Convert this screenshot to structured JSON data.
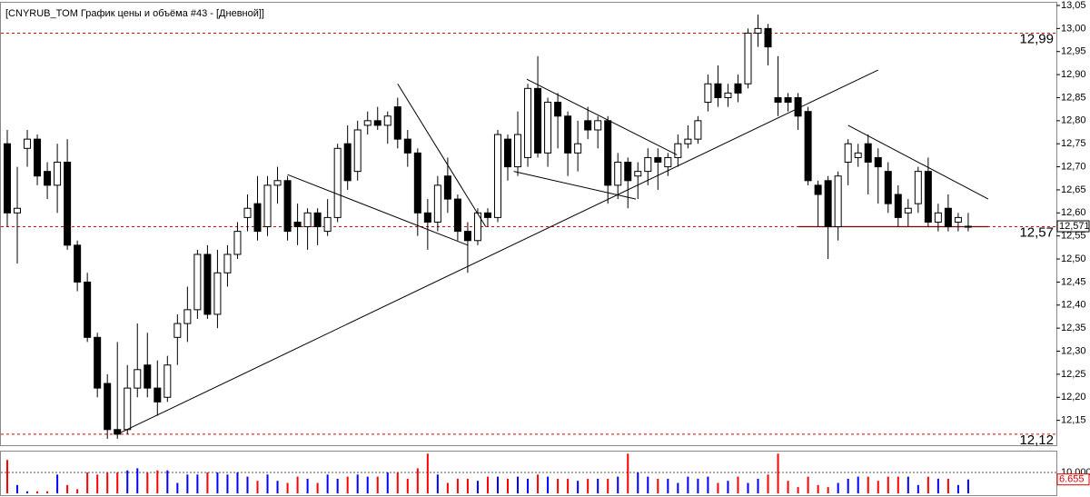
{
  "chart_data": {
    "type": "candlestick",
    "title": "[CNYRUB_TOM График цены и объёма #43 - [Дневной]]",
    "open": [
      12.75,
      12.6,
      12.74,
      12.76,
      12.69,
      12.66,
      12.71,
      12.53,
      12.45,
      12.33,
      12.23,
      12.13,
      12.13,
      12.22,
      12.27,
      12.22,
      12.2,
      12.33,
      12.36,
      12.39,
      12.51,
      12.38,
      12.47,
      12.51,
      12.59,
      12.62,
      12.57,
      12.66,
      12.67,
      12.58,
      12.57,
      12.6,
      12.56,
      12.59,
      12.75,
      12.69,
      12.79,
      12.8,
      12.79,
      12.83,
      12.76,
      12.73,
      12.6,
      12.58,
      12.68,
      12.63,
      12.56,
      12.54,
      12.6,
      12.59,
      12.76,
      12.7,
      12.72,
      12.87,
      12.73,
      12.84,
      12.81,
      12.73,
      12.8,
      12.78,
      12.8,
      12.66,
      12.71,
      12.68,
      12.69,
      12.72,
      12.7,
      12.72,
      12.75,
      12.76,
      12.84,
      12.88,
      12.85,
      12.88,
      12.88,
      12.99,
      13.0,
      12.85,
      12.85,
      12.85,
      12.82,
      12.66,
      12.67,
      12.57,
      12.71,
      12.72,
      12.75,
      12.72,
      12.69,
      12.64,
      12.6,
      12.62,
      12.69,
      12.58,
      12.61,
      12.58,
      12.57
    ],
    "high": [
      12.78,
      12.7,
      12.78,
      12.77,
      12.71,
      12.75,
      12.76,
      12.54,
      12.47,
      12.34,
      12.25,
      12.32,
      12.27,
      12.36,
      12.34,
      12.28,
      12.29,
      12.38,
      12.44,
      12.52,
      12.53,
      12.52,
      12.53,
      12.58,
      12.64,
      12.68,
      12.68,
      12.7,
      12.68,
      12.62,
      12.61,
      12.61,
      12.63,
      12.75,
      12.79,
      12.8,
      12.82,
      12.83,
      12.82,
      12.85,
      12.78,
      12.74,
      12.63,
      12.68,
      12.72,
      12.64,
      12.58,
      12.61,
      12.61,
      12.78,
      12.77,
      12.82,
      12.88,
      12.94,
      12.85,
      12.86,
      12.82,
      12.8,
      12.83,
      12.81,
      12.81,
      12.73,
      12.72,
      12.71,
      12.74,
      12.74,
      12.73,
      12.77,
      12.79,
      12.81,
      12.9,
      12.92,
      12.88,
      12.9,
      13.0,
      13.03,
      13.01,
      12.94,
      12.86,
      12.86,
      12.83,
      12.67,
      12.68,
      12.69,
      12.76,
      12.75,
      12.77,
      12.74,
      12.71,
      12.66,
      12.63,
      12.7,
      12.72,
      12.62,
      12.64,
      12.6,
      12.6
    ],
    "low": [
      12.57,
      12.49,
      12.7,
      12.66,
      12.63,
      12.6,
      12.52,
      12.43,
      12.32,
      12.2,
      12.11,
      12.11,
      12.12,
      12.2,
      12.2,
      12.16,
      12.19,
      12.27,
      12.32,
      12.37,
      12.37,
      12.35,
      12.44,
      12.5,
      12.56,
      12.54,
      12.55,
      12.62,
      12.54,
      12.53,
      12.52,
      12.53,
      12.55,
      12.58,
      12.65,
      12.67,
      12.77,
      12.78,
      12.75,
      12.74,
      12.7,
      12.55,
      12.52,
      12.56,
      12.6,
      12.54,
      12.47,
      12.53,
      12.57,
      12.58,
      12.67,
      12.68,
      12.7,
      12.72,
      12.7,
      12.74,
      12.68,
      12.69,
      12.76,
      12.74,
      12.62,
      12.63,
      12.61,
      12.63,
      12.66,
      12.65,
      12.68,
      12.7,
      12.74,
      12.75,
      12.82,
      12.83,
      12.83,
      12.84,
      12.87,
      12.96,
      12.92,
      12.81,
      12.82,
      12.78,
      12.66,
      12.57,
      12.5,
      12.54,
      12.66,
      12.7,
      12.64,
      12.62,
      12.6,
      12.57,
      12.57,
      12.6,
      12.57,
      12.56,
      12.56,
      12.56,
      12.56
    ],
    "close": [
      12.6,
      12.61,
      12.76,
      12.68,
      12.66,
      12.71,
      12.53,
      12.45,
      12.33,
      12.22,
      12.13,
      12.12,
      12.22,
      12.26,
      12.22,
      12.19,
      12.27,
      12.36,
      12.39,
      12.51,
      12.38,
      12.47,
      12.51,
      12.56,
      12.61,
      12.56,
      12.66,
      12.67,
      12.56,
      12.57,
      12.6,
      12.57,
      12.59,
      12.74,
      12.67,
      12.78,
      12.8,
      12.79,
      12.81,
      12.76,
      12.73,
      12.6,
      12.58,
      12.66,
      12.63,
      12.56,
      12.54,
      12.6,
      12.59,
      12.77,
      12.7,
      12.77,
      12.87,
      12.73,
      12.84,
      12.81,
      12.73,
      12.75,
      12.78,
      12.8,
      12.66,
      12.71,
      12.67,
      12.69,
      12.72,
      12.71,
      12.72,
      12.75,
      12.76,
      12.8,
      12.88,
      12.85,
      12.86,
      12.86,
      12.99,
      13.0,
      12.96,
      12.84,
      12.84,
      12.81,
      12.67,
      12.64,
      12.57,
      12.68,
      12.75,
      12.73,
      12.71,
      12.7,
      12.62,
      12.59,
      12.61,
      12.69,
      12.58,
      12.6,
      12.57,
      12.59,
      12.571
    ],
    "volume": [
      16000,
      4000,
      1000,
      1000,
      1000,
      9000,
      4000,
      2000,
      10000,
      9000,
      10000,
      10000,
      11000,
      12000,
      10000,
      11000,
      11000,
      5000,
      9000,
      9000,
      10000,
      10000,
      9000,
      10000,
      8000,
      6000,
      9000,
      6000,
      5000,
      8000,
      7000,
      5000,
      9000,
      7000,
      8000,
      9000,
      8000,
      8000,
      10000,
      10000,
      7000,
      12000,
      19000,
      9000,
      5000,
      7000,
      7000,
      6000,
      8000,
      8000,
      7000,
      8000,
      7000,
      9000,
      8000,
      7000,
      7000,
      6000,
      7000,
      7000,
      7000,
      8000,
      19000,
      10000,
      8000,
      7000,
      7000,
      5000,
      8000,
      7000,
      8000,
      5000,
      6000,
      8000,
      5000,
      7000,
      9000,
      19000,
      6000,
      3000,
      8000,
      4000,
      3000,
      5000,
      7000,
      8000,
      8000,
      6000,
      8000,
      8000,
      8000,
      4000,
      8000,
      7000,
      7000,
      4000,
      6655
    ],
    "up_color": "#ffffff",
    "down_color": "#000000",
    "volume_up_color": "#0000ff",
    "volume_down_color": "#ff0000",
    "ylim": [
      12.1,
      13.05
    ],
    "yticks": [
      {
        "value": 12.15,
        "label": "12,15"
      },
      {
        "value": 12.2,
        "label": "12,20"
      },
      {
        "value": 12.25,
        "label": "12,25"
      },
      {
        "value": 12.3,
        "label": "12,30"
      },
      {
        "value": 12.35,
        "label": "12,35"
      },
      {
        "value": 12.4,
        "label": "12,40"
      },
      {
        "value": 12.45,
        "label": "12,45"
      },
      {
        "value": 12.5,
        "label": "12,50"
      },
      {
        "value": 12.55,
        "label": "12,55"
      },
      {
        "value": 12.6,
        "label": "12,60"
      },
      {
        "value": 12.65,
        "label": "12,65"
      },
      {
        "value": 12.7,
        "label": "12,70"
      },
      {
        "value": 12.75,
        "label": "12,75"
      },
      {
        "value": 12.8,
        "label": "12,80"
      },
      {
        "value": 12.85,
        "label": "12,85"
      },
      {
        "value": 12.9,
        "label": "12,90"
      },
      {
        "value": 12.95,
        "label": "12,95"
      },
      {
        "value": 13.0,
        "label": "13,00"
      },
      {
        "value": 13.05,
        "label": "13,05"
      }
    ],
    "current_price": {
      "value": 12.571,
      "label": "12,571"
    },
    "levels": [
      {
        "value": 12.99,
        "label": "12,99"
      },
      {
        "value": 12.57,
        "label": "12,57"
      },
      {
        "value": 12.12,
        "label": "12,12"
      }
    ],
    "level_color": "#e00000",
    "trendlines": [
      {
        "x": [
          11,
          87
        ],
        "y": [
          12.12,
          12.91
        ]
      },
      {
        "x": [
          28,
          46
        ],
        "y": [
          12.683,
          12.53
        ]
      },
      {
        "x": [
          39,
          47.8
        ],
        "y": [
          12.88,
          12.57
        ]
      },
      {
        "x": [
          51.9,
          66.9
        ],
        "y": [
          12.89,
          12.726
        ]
      },
      {
        "x": [
          50.6,
          62.8
        ],
        "y": [
          12.69,
          12.63
        ]
      },
      {
        "x": [
          84,
          98
        ],
        "y": [
          12.79,
          12.63
        ]
      }
    ],
    "support_line": {
      "x": [
        79,
        98
      ],
      "y": [
        12.57,
        12.57
      ]
    },
    "vlim": [
      0,
      20000
    ],
    "vticks": [
      {
        "value": 10000,
        "label": "10 000"
      }
    ],
    "current_volume": {
      "value": 6655,
      "label": "6.655"
    }
  }
}
